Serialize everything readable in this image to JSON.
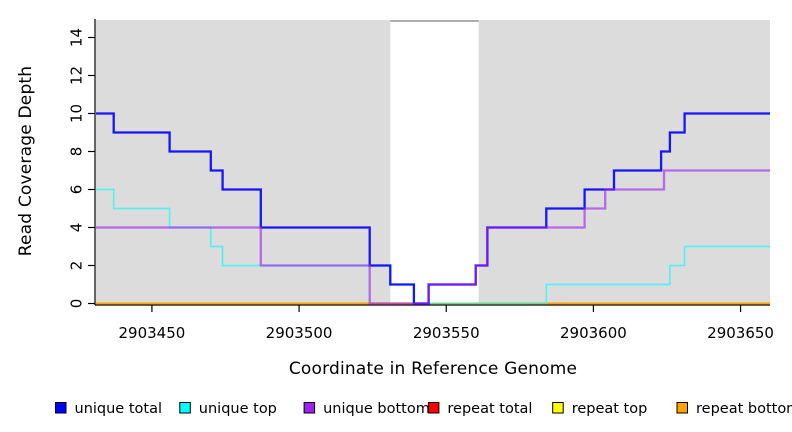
{
  "chart_data": {
    "type": "line",
    "subtype": "step-coverage-plot",
    "title": "",
    "xlabel": "Coordinate in Reference Genome",
    "ylabel": "Read Coverage Depth",
    "xlim": [
      2903431,
      2903660
    ],
    "ylim": [
      0,
      15
    ],
    "grid": false,
    "plot_bg_color": "#DCDCDC",
    "repeat_region": {
      "x0": 2903531,
      "x1": 2903561,
      "color": "#FFFFFF",
      "top_edge_color": "#909090"
    },
    "axis_color": "#000000",
    "x_ticks": [
      {
        "value": 2903450,
        "label": "2903450"
      },
      {
        "value": 2903500,
        "label": "2903500"
      },
      {
        "value": 2903550,
        "label": "2903550"
      },
      {
        "value": 2903600,
        "label": "2903600"
      },
      {
        "value": 2903650,
        "label": "2903650"
      }
    ],
    "y_ticks": [
      {
        "value": 0,
        "label": "0"
      },
      {
        "value": 2,
        "label": "2"
      },
      {
        "value": 4,
        "label": "4"
      },
      {
        "value": 6,
        "label": "6"
      },
      {
        "value": 8,
        "label": "8"
      },
      {
        "value": 10,
        "label": "10"
      },
      {
        "value": 12,
        "label": "12"
      },
      {
        "value": 14,
        "label": "14"
      }
    ],
    "series": [
      {
        "name": "repeat top",
        "color": "#FFFF00",
        "opacity": 1,
        "width": 1.5,
        "points": [
          [
            2903431,
            0
          ],
          [
            2903660,
            0
          ]
        ]
      },
      {
        "name": "repeat total",
        "color": "#FF0000",
        "opacity": 1,
        "width": 1.5,
        "points": [
          [
            2903431,
            0
          ],
          [
            2903660,
            0
          ]
        ]
      },
      {
        "name": "repeat bottom",
        "color": "#FFA500",
        "opacity": 1,
        "width": 1.8,
        "points": [
          [
            2903431,
            0
          ],
          [
            2903660,
            0
          ]
        ]
      },
      {
        "name": "unique top",
        "color": "#00FFFF",
        "opacity": 0.6,
        "width": 1.7,
        "points": [
          [
            2903431,
            6
          ],
          [
            2903437,
            5
          ],
          [
            2903456,
            4
          ],
          [
            2903470,
            3
          ],
          [
            2903474,
            2
          ],
          [
            2903531,
            1
          ],
          [
            2903539,
            0
          ],
          [
            2903584,
            1
          ],
          [
            2903626,
            2
          ],
          [
            2903631,
            3
          ],
          [
            2903660,
            3
          ]
        ]
      },
      {
        "name": "unique total",
        "color": "#0000FF",
        "opacity": 0.9,
        "width": 2.3,
        "points": [
          [
            2903431,
            10
          ],
          [
            2903437,
            9
          ],
          [
            2903456,
            8
          ],
          [
            2903470,
            7
          ],
          [
            2903474,
            6
          ],
          [
            2903487,
            4
          ],
          [
            2903524,
            2
          ],
          [
            2903531,
            1
          ],
          [
            2903539,
            0
          ],
          [
            2903544,
            1
          ],
          [
            2903560,
            2
          ],
          [
            2903564,
            4
          ],
          [
            2903584,
            5
          ],
          [
            2903597,
            6
          ],
          [
            2903607,
            7
          ],
          [
            2903623,
            8
          ],
          [
            2903626,
            9
          ],
          [
            2903631,
            10
          ],
          [
            2903660,
            10
          ]
        ]
      },
      {
        "name": "unique bottom",
        "color": "#A020F0",
        "opacity": 0.62,
        "width": 2.3,
        "points": [
          [
            2903431,
            4
          ],
          [
            2903487,
            2
          ],
          [
            2903524,
            0
          ],
          [
            2903544,
            1
          ],
          [
            2903560,
            2
          ],
          [
            2903564,
            4
          ],
          [
            2903597,
            5
          ],
          [
            2903604,
            6
          ],
          [
            2903624,
            7
          ],
          [
            2903660,
            7
          ]
        ]
      }
    ],
    "legend": {
      "position": "bottom",
      "items": [
        {
          "label": "unique total",
          "color": "#0000FF"
        },
        {
          "label": "unique top",
          "color": "#00FFFF"
        },
        {
          "label": "unique bottom",
          "color": "#A020F0"
        },
        {
          "label": "repeat total",
          "color": "#FF0000"
        },
        {
          "label": "repeat top",
          "color": "#FFFF00"
        },
        {
          "label": "repeat bottom",
          "color": "#FFA500"
        }
      ]
    }
  }
}
